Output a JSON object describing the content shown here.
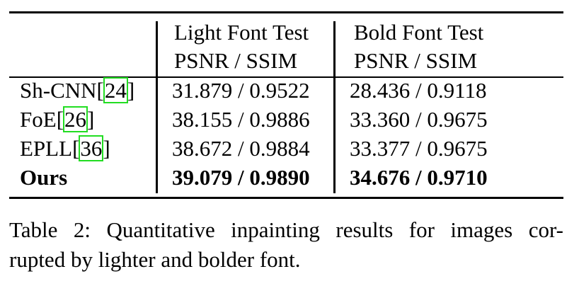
{
  "table": {
    "header": {
      "light_line1": "Light Font Test",
      "light_line2": "PSNR / SSIM",
      "bold_line1": "Bold Font Test",
      "bold_line2": "PSNR / SSIM"
    },
    "rows": [
      {
        "method": "Sh-CNN",
        "cite": "24",
        "close": "]",
        "light": "31.879 / 0.9522",
        "bold": "28.436 / 0.9118"
      },
      {
        "method": "FoE",
        "cite": "26",
        "close": "]",
        "light": "38.155 / 0.9886",
        "bold": "33.360 / 0.9675"
      },
      {
        "method": "EPLL",
        "cite": "36",
        "close": "]",
        "light": "38.672 / 0.9884",
        "bold": "33.377 / 0.9675"
      },
      {
        "method": "Ours",
        "light": "39.079 / 0.9890",
        "bold": "34.676 / 0.9710"
      }
    ]
  },
  "caption": {
    "line1": "Table 2:  Quantitative inpainting results for images cor-",
    "line2": "rupted by lighter and bolder font."
  },
  "colors": {
    "citation_box": "#22dd22"
  }
}
